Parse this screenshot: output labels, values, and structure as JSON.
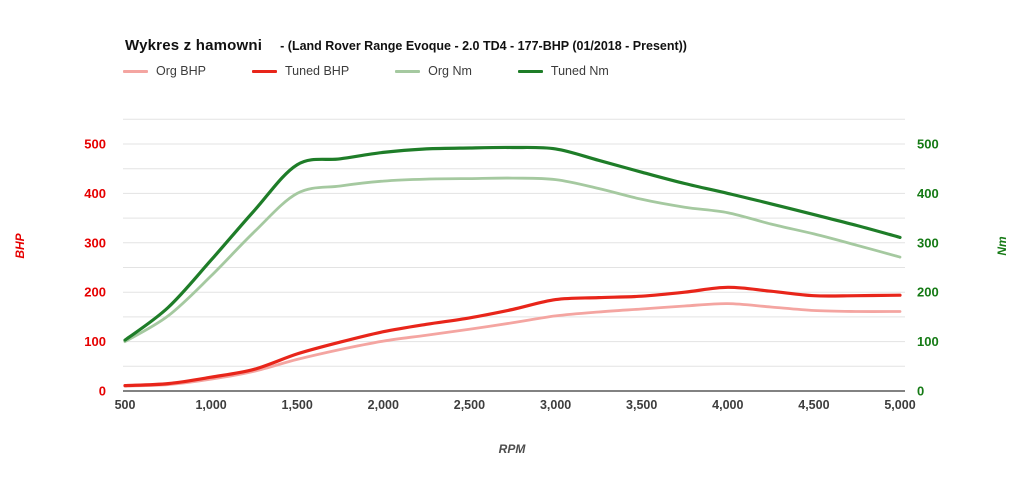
{
  "window": {
    "background": "#ffffff"
  },
  "header": {
    "title": "Wykres z hamowni",
    "subtitle": "- (Land Rover Range Evoque - 2.0 TD4 - 177-BHP (01/2018 - Present))"
  },
  "chart_data": {
    "type": "line",
    "title": "Wykres z hamowni - (Land Rover Range Evoque - 2.0 TD4 - 177-BHP (01/2018 - Present))",
    "xlabel": "RPM",
    "ylabel_left": "BHP",
    "ylabel_right": "Nm",
    "xlim": [
      500,
      5000
    ],
    "ylim_left": [
      0,
      550
    ],
    "ylim_right": [
      0,
      550
    ],
    "grid": "horizontal-only, every 50, light gray; zero axis dark gray",
    "legend_position": "top-left",
    "x_ticks": [
      500,
      1000,
      1500,
      2000,
      2500,
      3000,
      3500,
      4000,
      4500,
      5000
    ],
    "x_tick_labels": [
      "500",
      "1,000",
      "1,500",
      "2,000",
      "2,500",
      "3,000",
      "3,500",
      "4,000",
      "4,500",
      "5,000"
    ],
    "y_ticks_left": [
      0,
      100,
      200,
      300,
      400,
      500
    ],
    "y_ticks_right": [
      0,
      100,
      200,
      300,
      400,
      500
    ],
    "axis_colors": {
      "left": "#e60000",
      "right": "#157a15",
      "x_text": "#3d3d3d"
    },
    "x": [
      500,
      750,
      1000,
      1250,
      1500,
      1750,
      2000,
      2250,
      2500,
      2750,
      3000,
      3250,
      3500,
      3750,
      4000,
      4250,
      4500,
      4750,
      5000
    ],
    "series": [
      {
        "name": "Org BHP",
        "axis": "left",
        "color": "#f4a5a1",
        "stroke_width": 2.8,
        "values": [
          10,
          13,
          24,
          40,
          64,
          84,
          101,
          113,
          125,
          138,
          152,
          160,
          166,
          172,
          177,
          170,
          163,
          161,
          161
        ]
      },
      {
        "name": "Tuned BHP",
        "axis": "left",
        "color": "#e8251a",
        "stroke_width": 3.2,
        "values": [
          11,
          15,
          28,
          44,
          75,
          99,
          120,
          135,
          148,
          165,
          185,
          189,
          192,
          200,
          210,
          202,
          193,
          193,
          194
        ]
      },
      {
        "name": "Org Nm",
        "axis": "right",
        "color": "#a5c9a0",
        "stroke_width": 2.8,
        "values": [
          100,
          152,
          233,
          322,
          400,
          415,
          425,
          429,
          430,
          431,
          428,
          410,
          388,
          372,
          361,
          338,
          318,
          295,
          271
        ]
      },
      {
        "name": "Tuned Nm",
        "axis": "right",
        "color": "#1e7d28",
        "stroke_width": 3.2,
        "values": [
          103,
          169,
          265,
          365,
          458,
          470,
          483,
          490,
          492,
          493,
          490,
          467,
          443,
          420,
          400,
          379,
          357,
          335,
          311
        ]
      }
    ]
  }
}
